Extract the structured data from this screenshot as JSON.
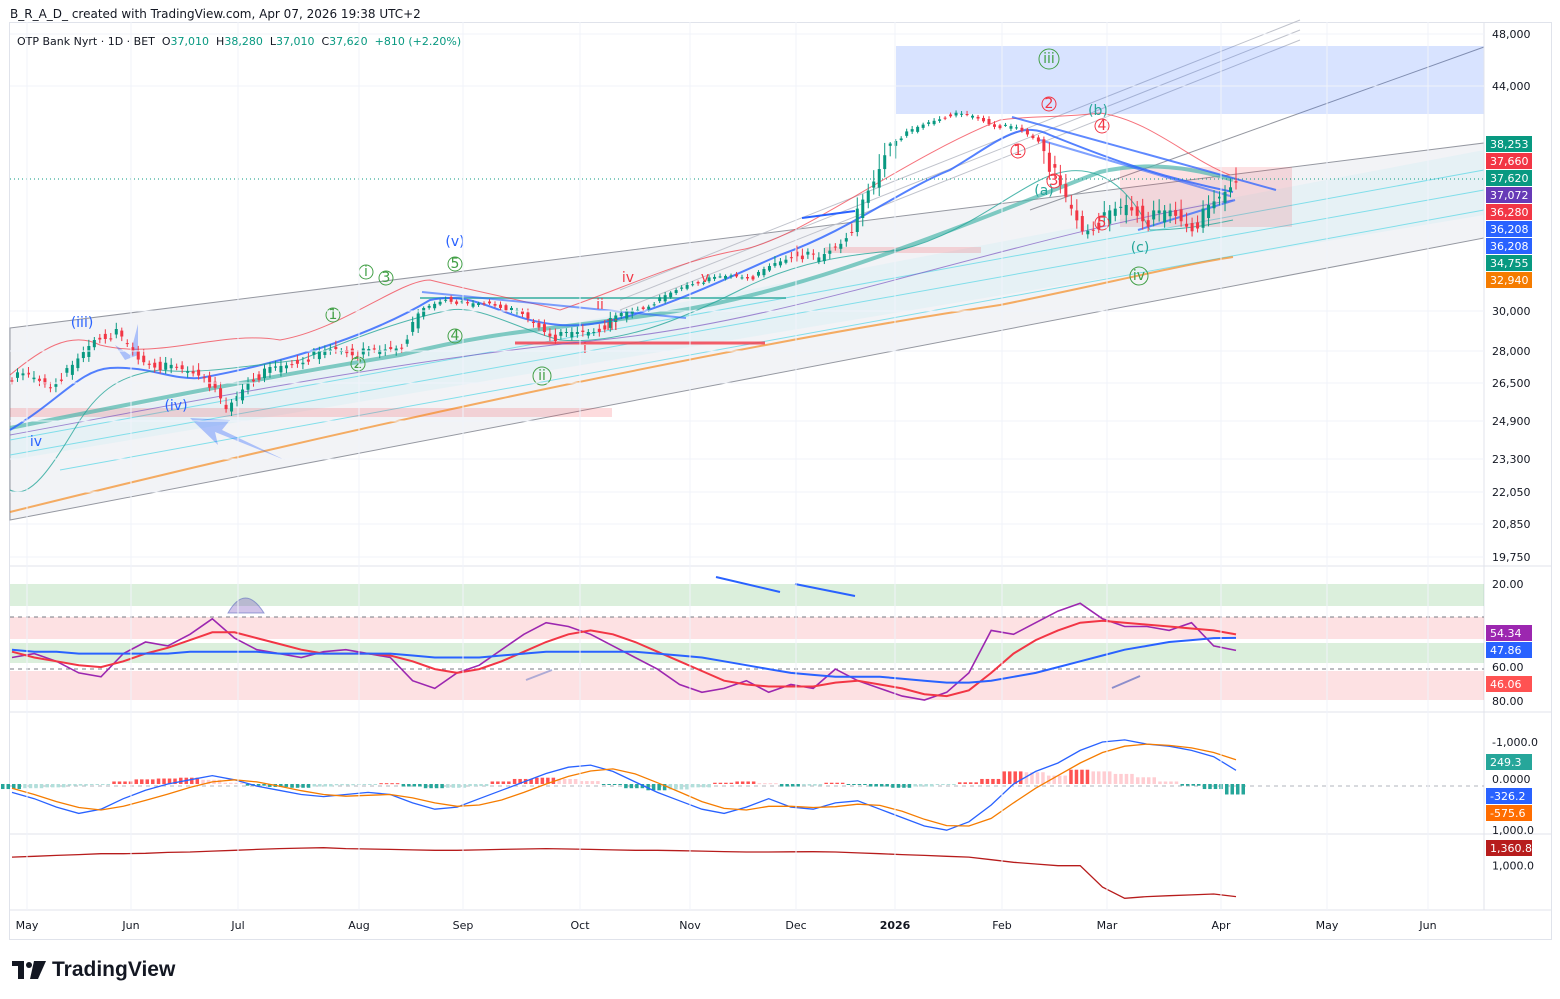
{
  "header": {
    "credit": "B_R_A_D_ created with TradingView.com, Apr 07, 2026 19:38 UTC+2",
    "symbol": "OTP Bank Nyrt · 1D · BET",
    "open_label": "O",
    "open": "37,010",
    "high_label": "H",
    "high": "38,280",
    "low_label": "L",
    "low": "37,010",
    "close_label": "C",
    "close": "37,620",
    "change": "+810 (+2.20%)"
  },
  "colors": {
    "up": "#089981",
    "down": "#f23645",
    "accent_blue": "#2962ff",
    "orange": "#f57c00",
    "purple": "#7e57c2",
    "rsi": "#9c27b0",
    "cum": "#b71c1c"
  },
  "logo": {
    "icon": "tradingview-logo-icon",
    "text": "TradingView"
  },
  "chart_data": [
    {
      "type": "line",
      "title": "OTP Bank Nyrt · 1D · BET",
      "pane": "price",
      "ylim": [
        19750,
        48000
      ],
      "y_ticks": [
        "48,000",
        "44,000",
        "30,000",
        "28,000",
        "26,500",
        "24,900",
        "23,300",
        "22,050",
        "20,850",
        "19,750"
      ],
      "y_tick_values": [
        48000,
        44000,
        30000,
        28000,
        26500,
        24900,
        23300,
        22050,
        20850,
        19750
      ],
      "x_ticks": [
        "May",
        "Jun",
        "Jul",
        "Aug",
        "Sep",
        "Oct",
        "Nov",
        "Dec",
        "2026",
        "Feb",
        "Mar",
        "Apr",
        "May",
        "Jun"
      ],
      "close_series": [
        26800,
        26400,
        27200,
        28600,
        28900,
        27600,
        27300,
        27100,
        26900,
        25300,
        26600,
        27100,
        27400,
        27800,
        28100,
        27900,
        28000,
        28300,
        30200,
        31200,
        30600,
        30800,
        30100,
        29400,
        28700,
        28900,
        29100,
        29800,
        30300,
        31400,
        32600,
        33100,
        33500,
        33300,
        34700,
        35200,
        34900,
        35700,
        36900,
        38100,
        39300,
        40400,
        41200,
        41000,
        40100,
        39800,
        38600,
        37300,
        36200,
        36500,
        36900,
        36500,
        36700,
        36300,
        36900,
        37620
      ],
      "price_tags": [
        {
          "value": "38,253",
          "color": "#089981",
          "v": 38253
        },
        {
          "value": "37,660",
          "color": "#f23645",
          "v": 37660
        },
        {
          "value": "37,620",
          "color": "#089981",
          "v": 37620
        },
        {
          "value": "37,072",
          "color": "#673ab7",
          "v": 37072
        },
        {
          "value": "36,280",
          "color": "#f23645",
          "v": 36280
        },
        {
          "value": "36,208",
          "color": "#2962ff",
          "v": 36208
        },
        {
          "value": "36,208",
          "color": "#2962ff",
          "v": 36208
        },
        {
          "value": "34,755",
          "color": "#089981",
          "v": 34755
        },
        {
          "value": "32,940",
          "color": "#f57c00",
          "v": 32940
        }
      ],
      "wave_labels": [
        {
          "text": "(iii)",
          "color": "#2962ff"
        },
        {
          "text": "(iv)",
          "color": "#2962ff"
        },
        {
          "text": "(v)",
          "color": "#2962ff"
        },
        {
          "text": "iv",
          "color": "#2962ff"
        },
        {
          "text": "i",
          "color": "#43a047",
          "circled": true
        },
        {
          "text": "ii",
          "color": "#43a047",
          "circled": true
        },
        {
          "text": "iii",
          "color": "#43a047",
          "circled": true
        },
        {
          "text": "iv",
          "color": "#43a047",
          "circled": true
        },
        {
          "text": "1",
          "color": "#43a047",
          "circled": true
        },
        {
          "text": "2",
          "color": "#43a047",
          "circled": true
        },
        {
          "text": "3",
          "color": "#43a047",
          "circled": true
        },
        {
          "text": "4",
          "color": "#43a047",
          "circled": true
        },
        {
          "text": "5",
          "color": "#43a047",
          "circled": true
        },
        {
          "text": "(a)",
          "color": "#26a69a"
        },
        {
          "text": "(b)",
          "color": "#26a69a"
        },
        {
          "text": "(c)",
          "color": "#26a69a"
        },
        {
          "text": "1",
          "color": "#f23645",
          "circled": true
        },
        {
          "text": "2",
          "color": "#f23645",
          "circled": true
        },
        {
          "text": "3",
          "color": "#f23645",
          "circled": true
        },
        {
          "text": "4",
          "color": "#f23645",
          "circled": true
        },
        {
          "text": "5",
          "color": "#f23645",
          "circled": true
        },
        {
          "text": "i",
          "color": "#f23645"
        },
        {
          "text": "ii",
          "color": "#f23645"
        },
        {
          "text": "iii",
          "color": "#f23645"
        },
        {
          "text": "iv",
          "color": "#f23645"
        },
        {
          "text": "v",
          "color": "#f23645"
        }
      ]
    },
    {
      "type": "line",
      "pane": "rsi",
      "ylim": [
        10,
        90
      ],
      "y_ticks": [
        "80.00",
        "60.00",
        "20.00"
      ],
      "y_tick_values": [
        80,
        60,
        20
      ],
      "series": [
        {
          "name": "RSI",
          "color": "#9c27b0",
          "last": "54.34",
          "values": [
            58,
            56,
            60,
            66,
            68,
            56,
            50,
            52,
            46,
            38,
            48,
            54,
            56,
            58,
            55,
            54,
            56,
            58,
            70,
            74,
            66,
            62,
            54,
            46,
            40,
            42,
            46,
            52,
            58,
            64,
            72,
            76,
            74,
            70,
            76,
            72,
            74,
            64,
            70,
            74,
            78,
            80,
            76,
            66,
            44,
            46,
            40,
            34,
            30,
            38,
            42,
            42,
            44,
            40,
            52,
            54.34
          ]
        },
        {
          "name": "RSI MA",
          "color": "#f23645",
          "last": "46.06",
          "values": [
            55,
            58,
            60,
            62,
            63,
            60,
            56,
            53,
            49,
            45,
            45,
            48,
            51,
            54,
            56,
            56,
            56,
            57,
            60,
            64,
            66,
            64,
            60,
            55,
            50,
            46,
            44,
            46,
            50,
            55,
            60,
            65,
            70,
            72,
            73,
            73,
            73,
            71,
            70,
            72,
            74,
            77,
            78,
            75,
            66,
            56,
            49,
            44,
            40,
            39,
            40,
            41,
            42,
            43,
            44,
            46.06
          ]
        },
        {
          "name": "RSI Slow",
          "color": "#2962ff",
          "last": "47.86",
          "values": [
            54,
            55,
            55,
            56,
            56,
            56,
            56,
            56,
            55,
            55,
            55,
            55,
            56,
            56,
            56,
            56,
            56,
            56,
            57,
            58,
            58,
            58,
            57,
            56,
            55,
            55,
            55,
            55,
            55,
            56,
            57,
            58,
            60,
            62,
            64,
            66,
            67,
            68,
            68,
            68,
            69,
            70,
            71,
            71,
            70,
            68,
            66,
            63,
            60,
            57,
            54,
            52,
            50,
            49,
            48,
            47.86
          ]
        }
      ]
    },
    {
      "type": "bar",
      "pane": "macd",
      "ylim": [
        -1400,
        1600
      ],
      "y_ticks": [
        "1,000.0",
        "0.0000",
        "-1,000.0"
      ],
      "y_tick_values": [
        1000,
        0,
        -1000
      ],
      "series": [
        {
          "name": "Histogram",
          "last": "249.3",
          "color": "#26a69a",
          "values": [
            120,
            100,
            80,
            40,
            0,
            -60,
            -110,
            -130,
            -150,
            -100,
            -30,
            40,
            70,
            90,
            60,
            30,
            10,
            -20,
            60,
            100,
            90,
            50,
            -60,
            -120,
            -150,
            -120,
            -70,
            20,
            100,
            150,
            130,
            80,
            -30,
            -60,
            -20,
            60,
            40,
            -30,
            10,
            60,
            90,
            60,
            20,
            -40,
            -120,
            -300,
            -280,
            -200,
            -340,
            -300,
            -240,
            -160,
            -60,
            40,
            120,
            249.3
          ]
        },
        {
          "name": "MACD",
          "last": "-326.2",
          "color": "#2962ff",
          "values": [
            200,
            350,
            550,
            700,
            600,
            350,
            150,
            0,
            -100,
            -200,
            -100,
            50,
            150,
            250,
            300,
            250,
            200,
            250,
            450,
            600,
            550,
            350,
            150,
            -50,
            -250,
            -400,
            -450,
            -300,
            -50,
            200,
            400,
            600,
            700,
            550,
            350,
            550,
            600,
            450,
            400,
            600,
            800,
            1000,
            1100,
            900,
            500,
            0,
            -300,
            -500,
            -800,
            -1000,
            -1050,
            -950,
            -900,
            -800,
            -650,
            -326.2
          ]
        },
        {
          "name": "Signal",
          "last": "-575.6",
          "color": "#f57c00",
          "values": [
            100,
            250,
            420,
            560,
            620,
            530,
            390,
            240,
            80,
            -50,
            -100,
            -50,
            50,
            160,
            250,
            290,
            270,
            250,
            330,
            450,
            530,
            500,
            380,
            200,
            0,
            -180,
            -310,
            -360,
            -240,
            -30,
            190,
            420,
            580,
            620,
            530,
            530,
            560,
            540,
            480,
            510,
            650,
            840,
            990,
            1000,
            820,
            450,
            100,
            -200,
            -500,
            -750,
            -900,
            -950,
            -920,
            -860,
            -750,
            -575.6
          ]
        }
      ]
    },
    {
      "type": "line",
      "pane": "cumulative",
      "ylim": [
        400,
        1500
      ],
      "y_ticks": [
        "1,000.0"
      ],
      "y_tick_values": [
        1000
      ],
      "series": [
        {
          "name": "Cumulative",
          "color": "#b71c1c",
          "last": "1,360.8",
          "values": [
            900,
            890,
            880,
            870,
            860,
            860,
            855,
            845,
            840,
            830,
            820,
            810,
            800,
            795,
            790,
            800,
            805,
            810,
            815,
            820,
            820,
            815,
            810,
            805,
            800,
            805,
            810,
            815,
            820,
            820,
            825,
            830,
            835,
            840,
            840,
            838,
            836,
            840,
            850,
            860,
            870,
            880,
            890,
            900,
            930,
            960,
            980,
            1000,
            1000,
            1250,
            1380,
            1360,
            1350,
            1340,
            1330,
            1360.8
          ]
        }
      ]
    }
  ]
}
